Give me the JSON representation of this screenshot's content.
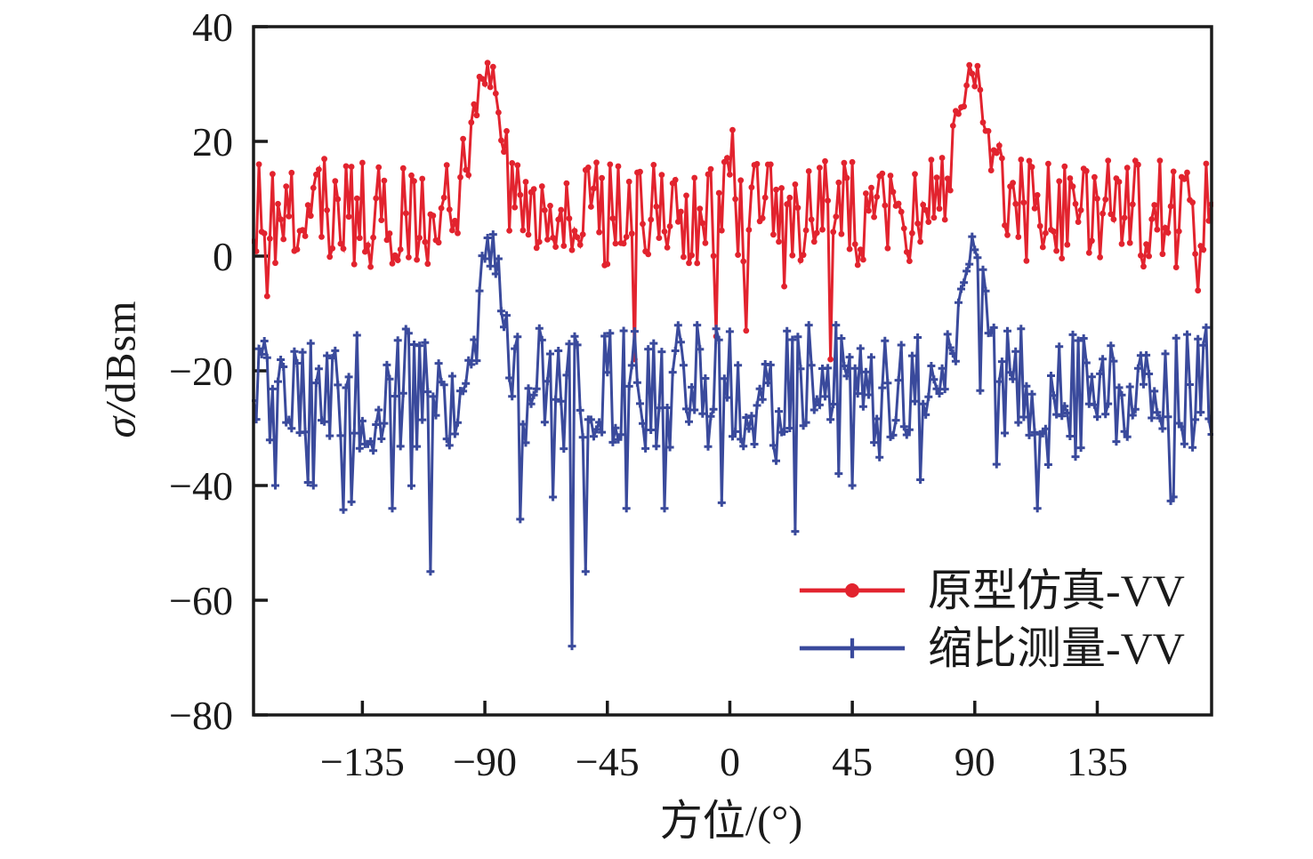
{
  "chart_data": {
    "type": "line",
    "title": "",
    "xlabel": "方位/(°)",
    "ylabel": "σ/dBsm",
    "xlim": [
      -175,
      177
    ],
    "ylim": [
      -80,
      40
    ],
    "xticks": [
      -135,
      -90,
      -45,
      0,
      45,
      90,
      135
    ],
    "yticks": [
      40,
      20,
      0,
      -20,
      -40,
      -60,
      -80
    ],
    "grid": false,
    "legend_position": "inside lower right",
    "axis_color": "#1a1a1a",
    "background": "#ffffff",
    "series": [
      {
        "name": "原型仿真-VV",
        "color": "#e2232e",
        "marker": "dot",
        "description": "prototype full-scale simulation RCS, noisy baseline 0~17 dBsm with main lobes at ±90°",
        "key_points": [
          [
            -89,
            32.5
          ],
          [
            89,
            32.5
          ],
          [
            1,
            22
          ],
          [
            -35,
            -18
          ],
          [
            37,
            -18
          ],
          [
            -5,
            -14
          ],
          [
            6,
            -13
          ],
          [
            -170,
            -7
          ],
          [
            172,
            -6
          ]
        ],
        "typical_range": [
          -2,
          17
        ],
        "synthesis": {
          "seed": 13,
          "x_start": -175,
          "x_end": 177,
          "x_step": 1,
          "baseline": 7.5,
          "noise_amp": 9.5,
          "peaks": [
            {
              "x": -89,
              "amp": 24.5,
              "sigma": 8
            },
            {
              "x": 89,
              "amp": 24.5,
              "sigma": 8
            },
            {
              "x": 0,
              "amp": 8,
              "sigma": 2.5
            }
          ],
          "noise_damp": [
            {
              "x": -89,
              "factor": 0.75,
              "sigma": 10
            },
            {
              "x": 89,
              "factor": 0.75,
              "sigma": 10
            }
          ],
          "dip_prob": 0.04,
          "dip_base": 4,
          "dip_rand": 7,
          "overrides": [
            [
              -170,
              -7
            ],
            [
              -35,
              -18
            ],
            [
              -5,
              -14
            ],
            [
              1,
              22
            ],
            [
              6,
              -13
            ],
            [
              37,
              -18
            ],
            [
              172,
              -6
            ]
          ]
        }
      },
      {
        "name": "缩比测量-VV",
        "color": "#3a4a9c",
        "marker": "plus",
        "description": "scaled-model measurement RCS, noisy baseline -35~-12 dBsm with main lobes at ±90° and deep fades",
        "key_points": [
          [
            -88,
            1.5
          ],
          [
            89,
            1.5
          ],
          [
            -58,
            -68
          ],
          [
            -110,
            -55
          ],
          [
            -53,
            -55
          ],
          [
            24,
            -48
          ],
          [
            -124,
            -44
          ],
          [
            -38,
            -44
          ],
          [
            -24,
            -44
          ],
          [
            113,
            -44
          ],
          [
            -3,
            -43
          ],
          [
            163,
            -42
          ],
          [
            -167,
            -40
          ],
          [
            -153,
            -40
          ],
          [
            45,
            -40
          ],
          [
            70,
            -39
          ]
        ],
        "typical_range": [
          -35,
          -12
        ],
        "synthesis": {
          "seed": 421,
          "x_start": -175,
          "x_end": 177,
          "x_step": 1,
          "baseline": -23,
          "noise_amp": 11,
          "peaks": [
            {
              "x": -88,
              "amp": 24.5,
              "sigma": 6.5
            },
            {
              "x": 89,
              "amp": 24.5,
              "sigma": 6.5
            }
          ],
          "noise_damp": [
            {
              "x": -88,
              "factor": 0.7,
              "sigma": 9
            },
            {
              "x": 89,
              "factor": 0.7,
              "sigma": 9
            }
          ],
          "dip_prob": 0.08,
          "dip_base": 6,
          "dip_rand": 12,
          "overrides": [
            [
              -167,
              -40
            ],
            [
              -153,
              -40
            ],
            [
              -124,
              -44
            ],
            [
              -110,
              -55
            ],
            [
              -58,
              -68
            ],
            [
              -53,
              -55
            ],
            [
              -38,
              -44
            ],
            [
              -24,
              -44
            ],
            [
              -3,
              -43
            ],
            [
              24,
              -48
            ],
            [
              45,
              -40
            ],
            [
              70,
              -39
            ],
            [
              113,
              -44
            ],
            [
              163,
              -42
            ]
          ]
        }
      }
    ]
  },
  "legend": {
    "items": [
      {
        "label": "原型仿真-VV",
        "color": "#e2232e",
        "marker": "dot"
      },
      {
        "label": "缩比测量-VV",
        "color": "#3a4a9c",
        "marker": "plus"
      }
    ]
  }
}
